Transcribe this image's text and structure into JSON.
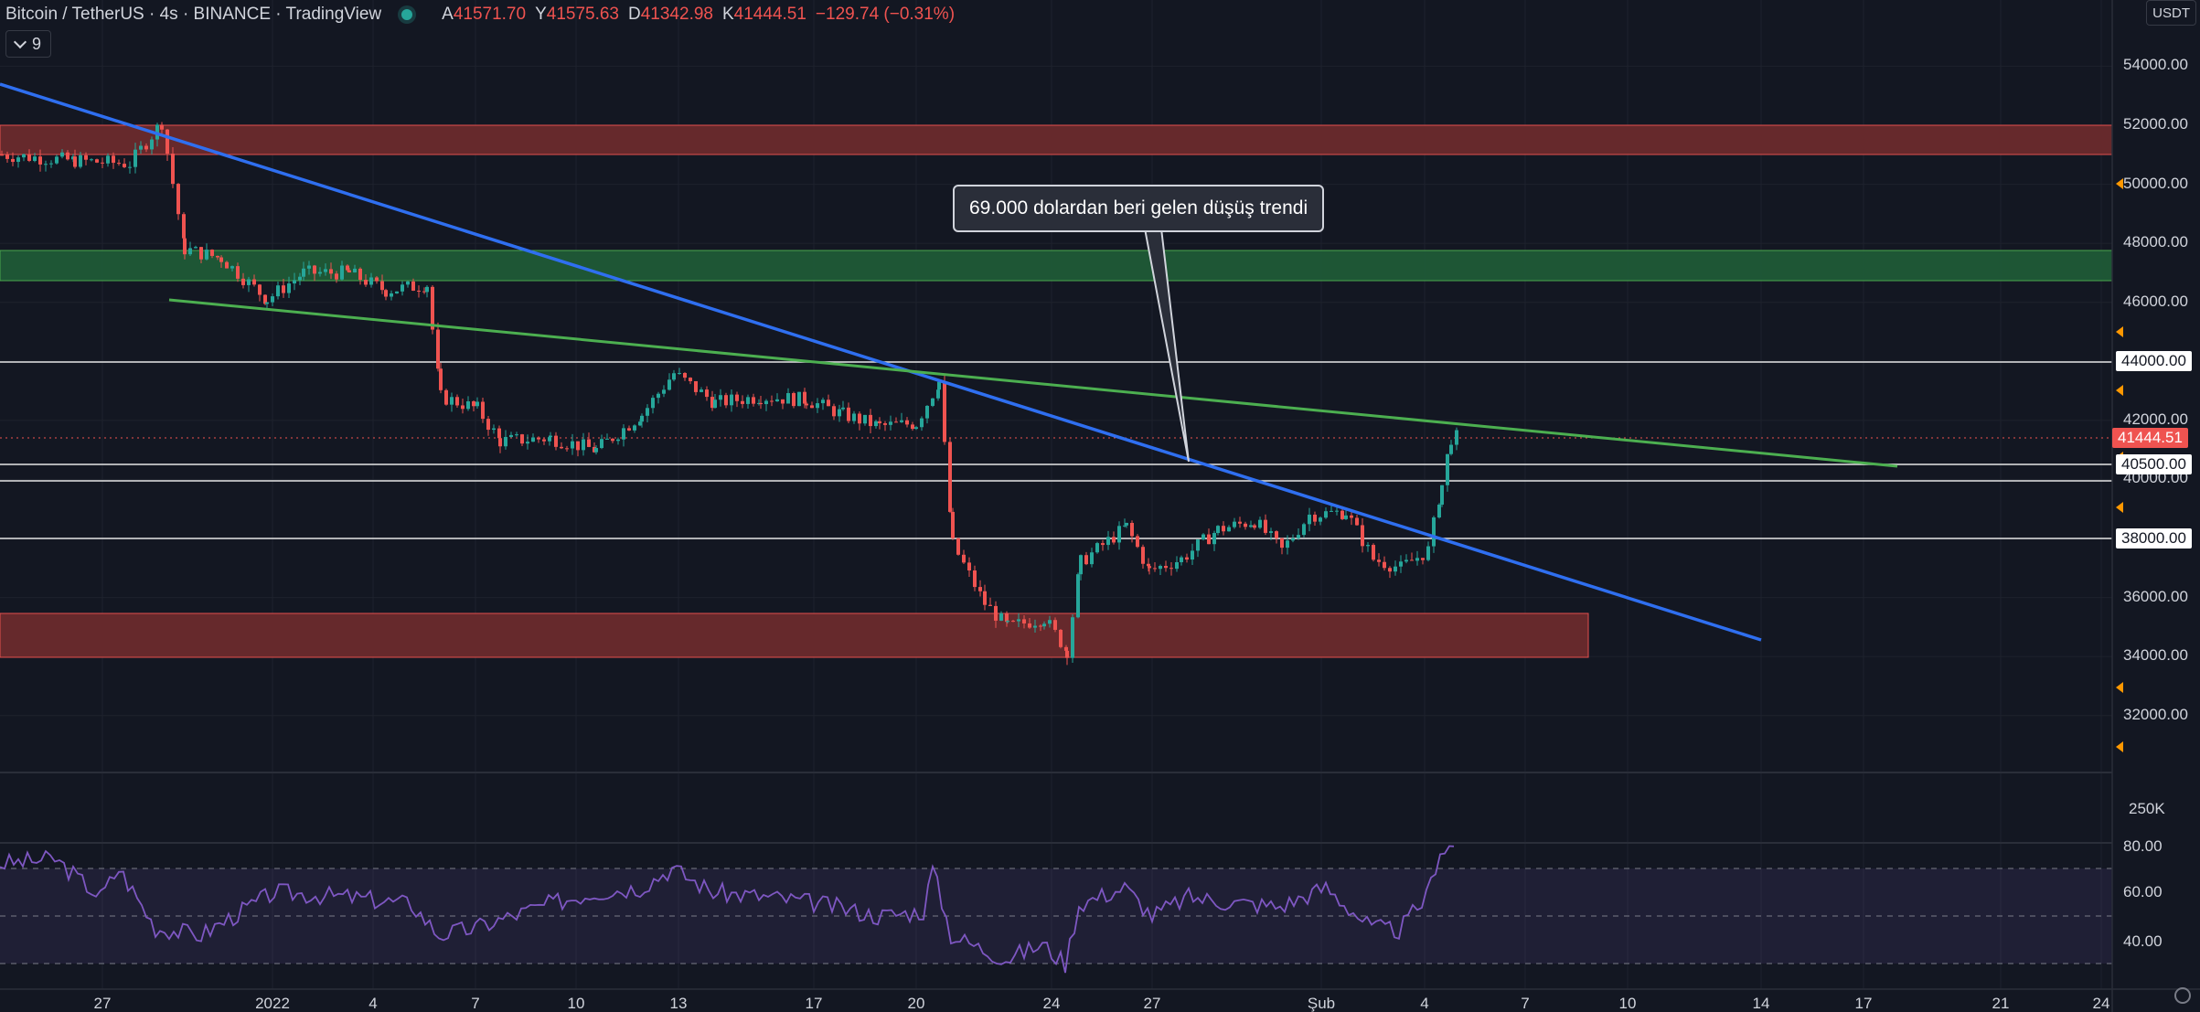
{
  "header": {
    "symbol": "Bitcoin / TetherUS · 4s · BINANCE · TradingView",
    "open_label": "A",
    "open": "41571.70",
    "high_label": "Y",
    "high": "41575.63",
    "low_label": "D",
    "low": "41342.98",
    "close_label": "K",
    "close": "41444.51",
    "change": "−129.74 (−0.31%)"
  },
  "indicator_badge": {
    "count": "9"
  },
  "currency_button": "USDT",
  "price_axis": {
    "labels": [
      "54000.00",
      "52000.00",
      "50000.00",
      "48000.00",
      "46000.00",
      "44000.00",
      "42000.00",
      "40000.00",
      "38000.00",
      "36000.00",
      "34000.00",
      "32000.00"
    ],
    "boxed": [
      "44000.00",
      "40500.00",
      "38000.00"
    ],
    "current_price": "41444.51",
    "volume_label": "250K",
    "rsi_labels": [
      "80.00",
      "60.00",
      "40.00"
    ]
  },
  "time_axis": {
    "labels": [
      "27",
      "2022",
      "4",
      "7",
      "10",
      "13",
      "17",
      "20",
      "24",
      "27",
      "Şub",
      "4",
      "7",
      "10",
      "14",
      "17",
      "21",
      "24"
    ]
  },
  "annotation": {
    "text": "69.000 dolardan beri gelen düşüş trendi"
  },
  "colors": {
    "background": "#131722",
    "up": "#26a69a",
    "down": "#ef5350",
    "trend_blue": "#2962ff",
    "trend_green": "#4caf50",
    "rsi": "#7e57c2"
  },
  "icons": [
    "settings-gear-icon",
    "chevron-down-icon",
    "market-status-icon"
  ]
}
